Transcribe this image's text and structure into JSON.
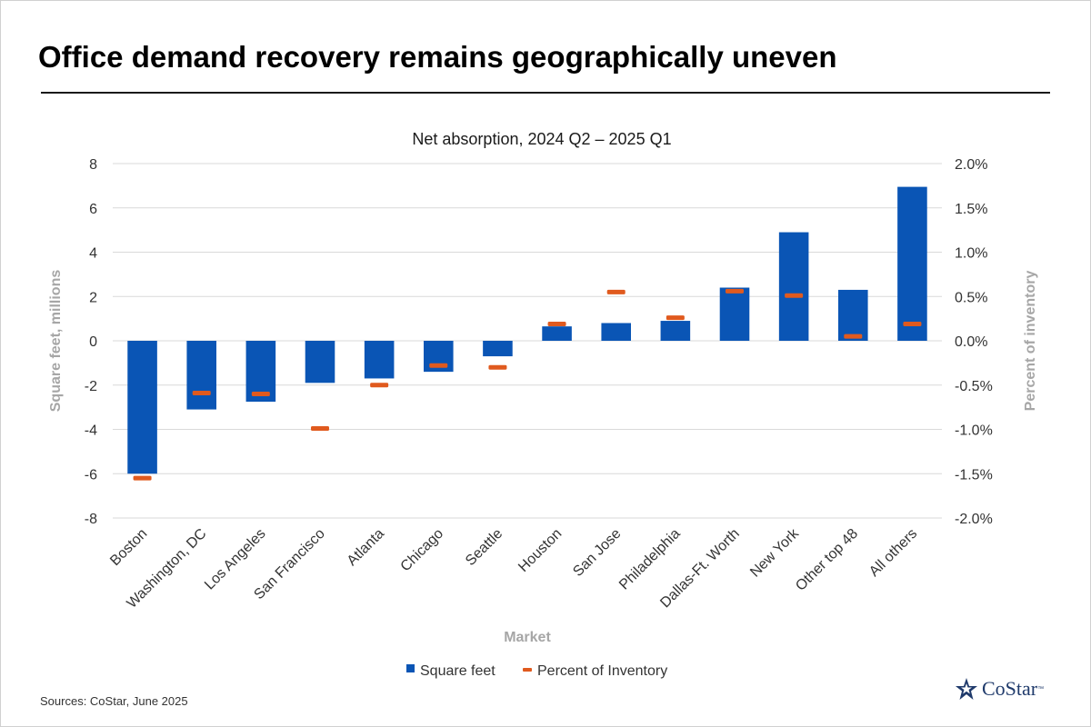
{
  "page": {
    "headline": "Office demand recovery remains geographically uneven",
    "source": "Sources: CoStar, June 2025",
    "logo_text": "CoStar",
    "logo_tm": "™"
  },
  "colors": {
    "bar": "#0a55b5",
    "marker": "#e05a1e",
    "axis_label": "#a6a6a6",
    "gridline": "#d9d9d9"
  },
  "chart_data": {
    "type": "bar",
    "title": "Net absorption, 2024 Q2 – 2025 Q1",
    "xlabel": "Market",
    "ylabel": "Square feet, millions",
    "y2label": "Percent of inventory",
    "ylim": [
      -8,
      8
    ],
    "yticks": [
      8,
      6,
      4,
      2,
      0,
      -2,
      -4,
      -6,
      -8
    ],
    "y2lim": [
      -0.02,
      0.02
    ],
    "y2ticks": [
      "2.0%",
      "1.5%",
      "1.0%",
      "0.5%",
      "0.0%",
      "-0.5%",
      "-1.0%",
      "-1.5%",
      "-2.0%"
    ],
    "grid": true,
    "legend_position": "bottom",
    "categories": [
      "Boston",
      "Washington, DC",
      "Los Angeles",
      "San Francisco",
      "Atlanta",
      "Chicago",
      "Seattle",
      "Houston",
      "San Jose",
      "Philadelphia",
      "Dallas-Ft. Worth",
      "New York",
      "Other top 48",
      "All others"
    ],
    "series": [
      {
        "name": "Square feet",
        "axis": "left",
        "kind": "bar",
        "values": [
          -6.0,
          -3.1,
          -2.75,
          -1.9,
          -1.7,
          -1.4,
          -0.7,
          0.65,
          0.8,
          0.9,
          2.4,
          4.9,
          2.3,
          6.95
        ]
      },
      {
        "name": "Percent of Inventory",
        "axis": "right",
        "kind": "marker",
        "values": [
          -0.0155,
          -0.0059,
          -0.006,
          -0.0099,
          -0.005,
          -0.0028,
          -0.003,
          0.0019,
          0.0055,
          0.0026,
          0.0056,
          0.0051,
          0.0005,
          0.0019
        ]
      }
    ]
  }
}
